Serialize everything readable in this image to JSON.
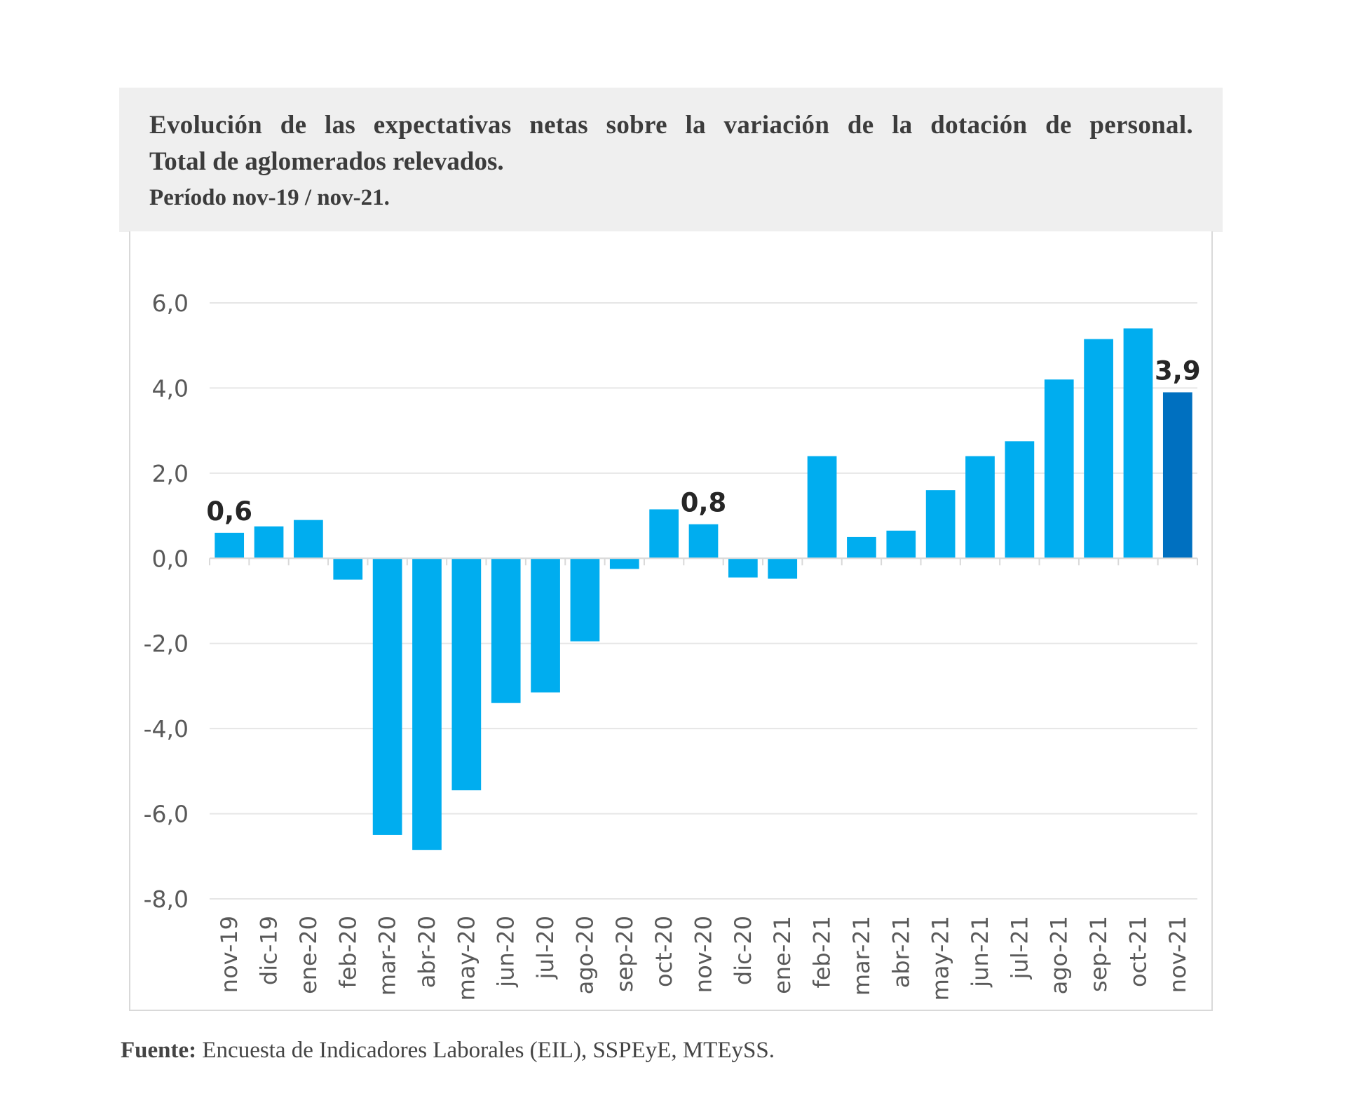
{
  "header": {
    "title_line1": "Evolución de las expectativas netas sobre la variación de la dotación de personal.",
    "title_line2": "Total de aglomerados relevados.",
    "subtitle": "Período nov-19 / nov-21."
  },
  "footer": {
    "source_label": "Fuente:",
    "source_text": " Encuesta de Indicadores Laborales (EIL), SSPEyE, MTEySS."
  },
  "colors": {
    "bar": "#00adef",
    "bar_highlight": "#0070c0",
    "grid": "#e6e6e6",
    "axis_text": "#595959"
  },
  "chart_data": {
    "type": "bar",
    "categories": [
      "nov-19",
      "dic-19",
      "ene-20",
      "feb-20",
      "mar-20",
      "abr-20",
      "may-20",
      "jun-20",
      "jul-20",
      "ago-20",
      "sep-20",
      "oct-20",
      "nov-20",
      "dic-20",
      "ene-21",
      "feb-21",
      "mar-21",
      "abr-21",
      "may-21",
      "jun-21",
      "jul-21",
      "ago-21",
      "sep-21",
      "oct-21",
      "nov-21"
    ],
    "values": [
      0.6,
      0.75,
      0.9,
      -0.5,
      -6.5,
      -6.85,
      -5.45,
      -3.4,
      -3.15,
      -1.95,
      -0.25,
      1.15,
      0.8,
      -0.45,
      -0.48,
      2.4,
      0.5,
      0.65,
      1.6,
      2.4,
      2.75,
      4.2,
      5.15,
      5.4,
      3.9
    ],
    "data_labels": [
      {
        "index": 0,
        "text": "0,6"
      },
      {
        "index": 12,
        "text": "0,8"
      },
      {
        "index": 24,
        "text": "3,9"
      }
    ],
    "highlight_index": 24,
    "y_ticks": [
      "6,0",
      "4,0",
      "2,0",
      "0,0",
      "-2,0",
      "-4,0",
      "-6,0",
      "-8,0"
    ],
    "y_tick_values": [
      6,
      4,
      2,
      0,
      -2,
      -4,
      -6,
      -8
    ],
    "ylim": [
      -8,
      6
    ],
    "grid": true,
    "legend": "none"
  }
}
